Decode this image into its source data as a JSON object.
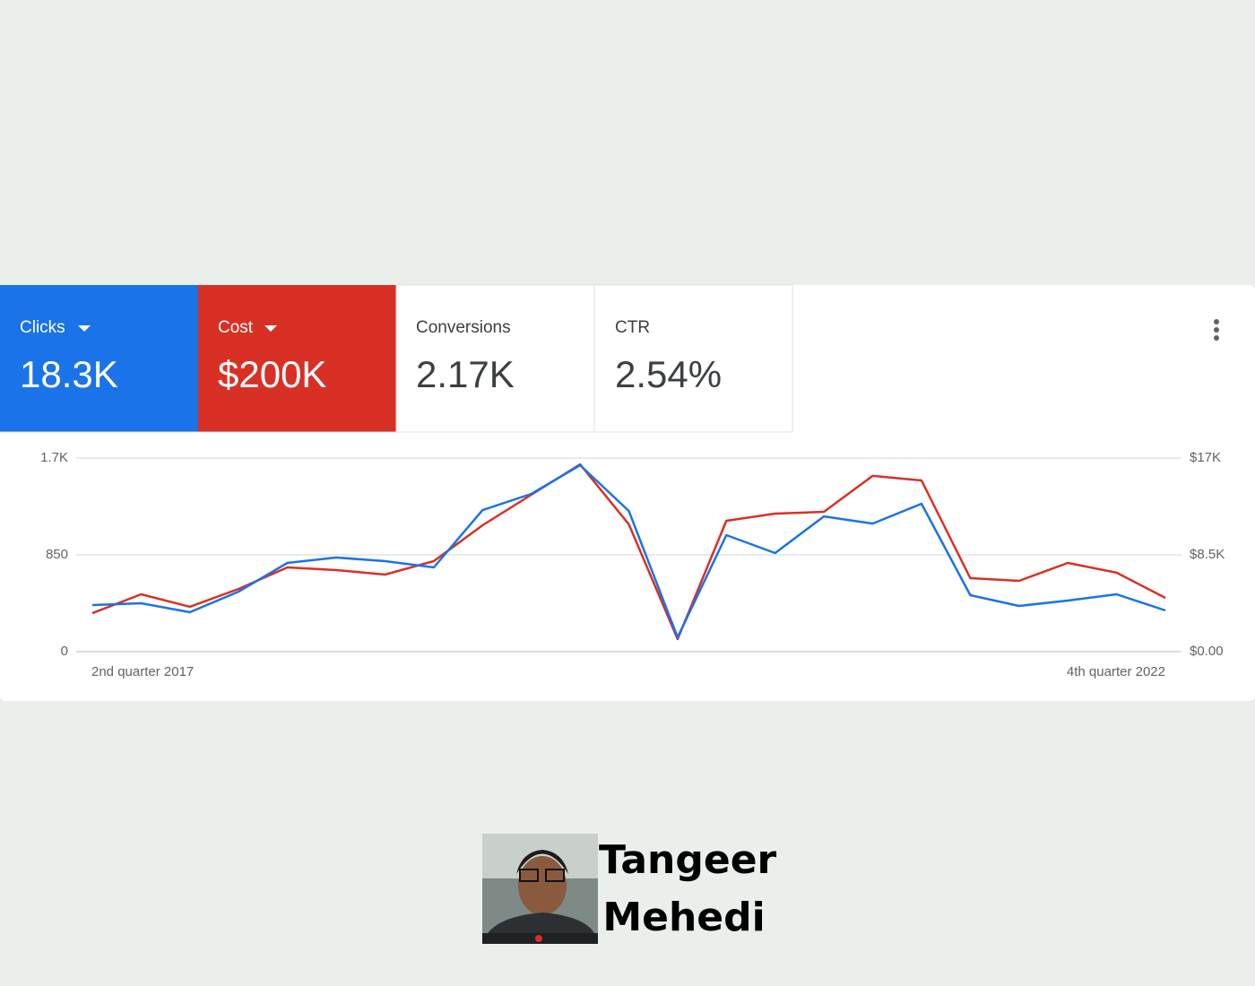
{
  "chart_data": {
    "type": "line",
    "series": [
      {
        "name": "Clicks",
        "total": "18.3K",
        "color": "#1a73e8",
        "values": [
          409,
          425,
          346,
          527,
          779,
          826,
          795,
          740,
          1243,
          1385,
          1637,
          1236,
          126,
          1023,
          866,
          1188,
          1125,
          1299,
          496,
          401,
          449,
          504,
          362
        ]
      },
      {
        "name": "Cost",
        "total": "$200K",
        "color": "#d93025",
        "axis": "y2",
        "values": [
          3380,
          5040,
          3940,
          5510,
          7400,
          7160,
          6770,
          7950,
          11100,
          13770,
          16450,
          11180,
          1100,
          11490,
          12120,
          12280,
          15430,
          15030,
          6450,
          6220,
          7790,
          6930,
          4720
        ]
      }
    ],
    "other_metrics": [
      {
        "name": "Conversions",
        "total": "2.17K"
      },
      {
        "name": "CTR",
        "total": "2.54%"
      }
    ],
    "categories": [
      "2nd quarter 2017",
      null,
      null,
      null,
      null,
      null,
      null,
      null,
      null,
      null,
      null,
      null,
      null,
      null,
      null,
      null,
      null,
      null,
      null,
      null,
      null,
      null,
      "4th quarter 2022"
    ],
    "ylim": [
      0,
      1700
    ],
    "yticks": [
      0,
      850,
      {
        "value": 1700,
        "label": "1.7K"
      }
    ],
    "y2lim": [
      0,
      17000
    ],
    "y2ticks": [
      {
        "value": 0,
        "label": "$0.00"
      },
      {
        "value": 8500,
        "label": "$8.5K"
      },
      {
        "value": 17000,
        "label": "$17K"
      }
    ],
    "grid": true
  },
  "author": "Tangeer Mehedi"
}
